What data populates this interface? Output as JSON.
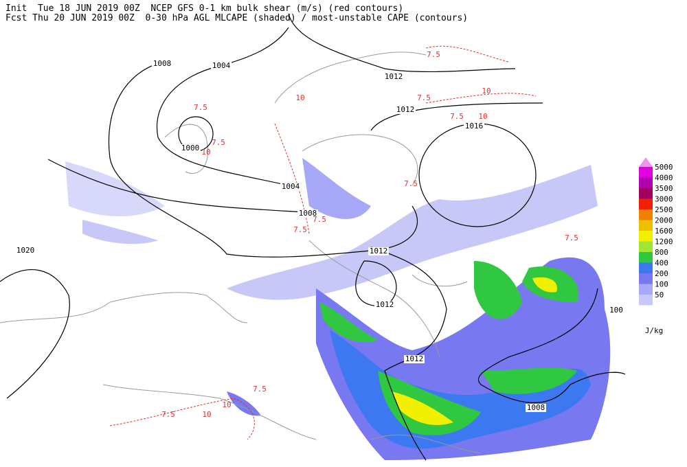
{
  "header": {
    "line1": "Init  Tue 18 JUN 2019 00Z  NCEP GFS 0-1 km bulk shear (m/s) (red contours)",
    "line2": "Fcst Thu 20 JUN 2019 00Z  0-30 hPa AGL MLCAPE (shaded) / most-unstable CAPE (contours)"
  },
  "isobar_labels": [
    "1008",
    "1004",
    "1000",
    "1004",
    "1008",
    "1012",
    "1012",
    "1016",
    "1012",
    "1012",
    "1012",
    "1020",
    "1008",
    "100"
  ],
  "shear_labels": [
    "7.5",
    "7.5",
    "10",
    "10",
    "7.5",
    "7.5",
    "7.5",
    "7.5",
    "10",
    "7.5",
    "10",
    "7.5",
    "7.5",
    "10",
    "10",
    "7.5",
    "7.5"
  ],
  "colorbar": {
    "levels": [
      {
        "label": "5000",
        "color": "#e000e0"
      },
      {
        "label": "4000",
        "color": "#b000b0"
      },
      {
        "label": "3500",
        "color": "#a00060"
      },
      {
        "label": "3000",
        "color": "#f02000"
      },
      {
        "label": "2500",
        "color": "#f08000"
      },
      {
        "label": "2000",
        "color": "#f0c000"
      },
      {
        "label": "1600",
        "color": "#f0f000"
      },
      {
        "label": "1200",
        "color": "#a0e632"
      },
      {
        "label": "800",
        "color": "#30c840"
      },
      {
        "label": "400",
        "color": "#3c78f0"
      },
      {
        "label": "200",
        "color": "#7878f0"
      },
      {
        "label": "100",
        "color": "#a8a8f8"
      },
      {
        "label": "50",
        "color": "#c8c8f8"
      }
    ],
    "top_color": "#f090f0",
    "unit": "J/kg"
  }
}
